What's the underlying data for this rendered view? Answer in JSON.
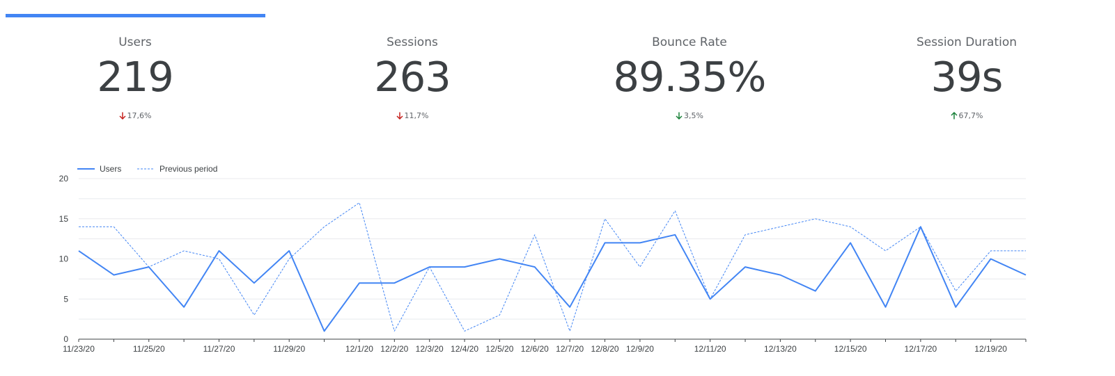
{
  "kpis": [
    {
      "label": "Users",
      "value": "219",
      "delta": "17,6%",
      "direction": "down",
      "delta_color": "#c5221f"
    },
    {
      "label": "Sessions",
      "value": "263",
      "delta": "11,7%",
      "direction": "down",
      "delta_color": "#c5221f"
    },
    {
      "label": "Bounce Rate",
      "value": "89.35%",
      "delta": "3,5%",
      "direction": "down",
      "delta_color": "#188038"
    },
    {
      "label": "Session Duration",
      "value": "39s",
      "delta": "67,7%",
      "direction": "up",
      "delta_color": "#188038"
    }
  ],
  "colors": {
    "accent": "#4285f4",
    "series_line": "#4285f4",
    "grid": "#e8eaed",
    "axis": "#3c4043"
  },
  "chart_data": {
    "type": "line",
    "legend_position": "top-left",
    "grid": true,
    "ylim": [
      0,
      20
    ],
    "yticks": [
      "0",
      "5",
      "10",
      "15",
      "20"
    ],
    "x": [
      "11/23/20",
      "11/24/20",
      "11/25/20",
      "11/26/20",
      "11/27/20",
      "11/28/20",
      "11/29/20",
      "11/30/20",
      "12/1/20",
      "12/2/20",
      "12/3/20",
      "12/4/20",
      "12/5/20",
      "12/6/20",
      "12/7/20",
      "12/8/20",
      "12/9/20",
      "12/10/20",
      "12/11/20",
      "12/12/20",
      "12/13/20",
      "12/14/20",
      "12/15/20",
      "12/16/20",
      "12/17/20",
      "12/18/20",
      "12/19/20",
      "12/20/20"
    ],
    "xtick_labels": [
      "11/23/20",
      "",
      "11/25/20",
      "",
      "11/27/20",
      "",
      "11/29/20",
      "",
      "12/1/20",
      "12/2/20",
      "12/3/20",
      "12/4/20",
      "12/5/20",
      "12/6/20",
      "12/7/20",
      "12/8/20",
      "12/9/20",
      "",
      "12/11/20",
      "",
      "12/13/20",
      "",
      "12/15/20",
      "",
      "12/17/20",
      "",
      "12/19/20",
      ""
    ],
    "series": [
      {
        "name": "Users",
        "style": "solid",
        "values": [
          11,
          8,
          9,
          4,
          11,
          7,
          11,
          1,
          7,
          7,
          9,
          9,
          10,
          9,
          4,
          12,
          12,
          13,
          5,
          9,
          8,
          6,
          12,
          4,
          14,
          4,
          10,
          8
        ]
      },
      {
        "name": "Previous period",
        "style": "dashed",
        "values": [
          14,
          14,
          9,
          11,
          10,
          3,
          10,
          14,
          17,
          1,
          9,
          1,
          3,
          13,
          1,
          15,
          9,
          16,
          5,
          13,
          14,
          15,
          14,
          11,
          14,
          6,
          11,
          11
        ]
      }
    ]
  }
}
